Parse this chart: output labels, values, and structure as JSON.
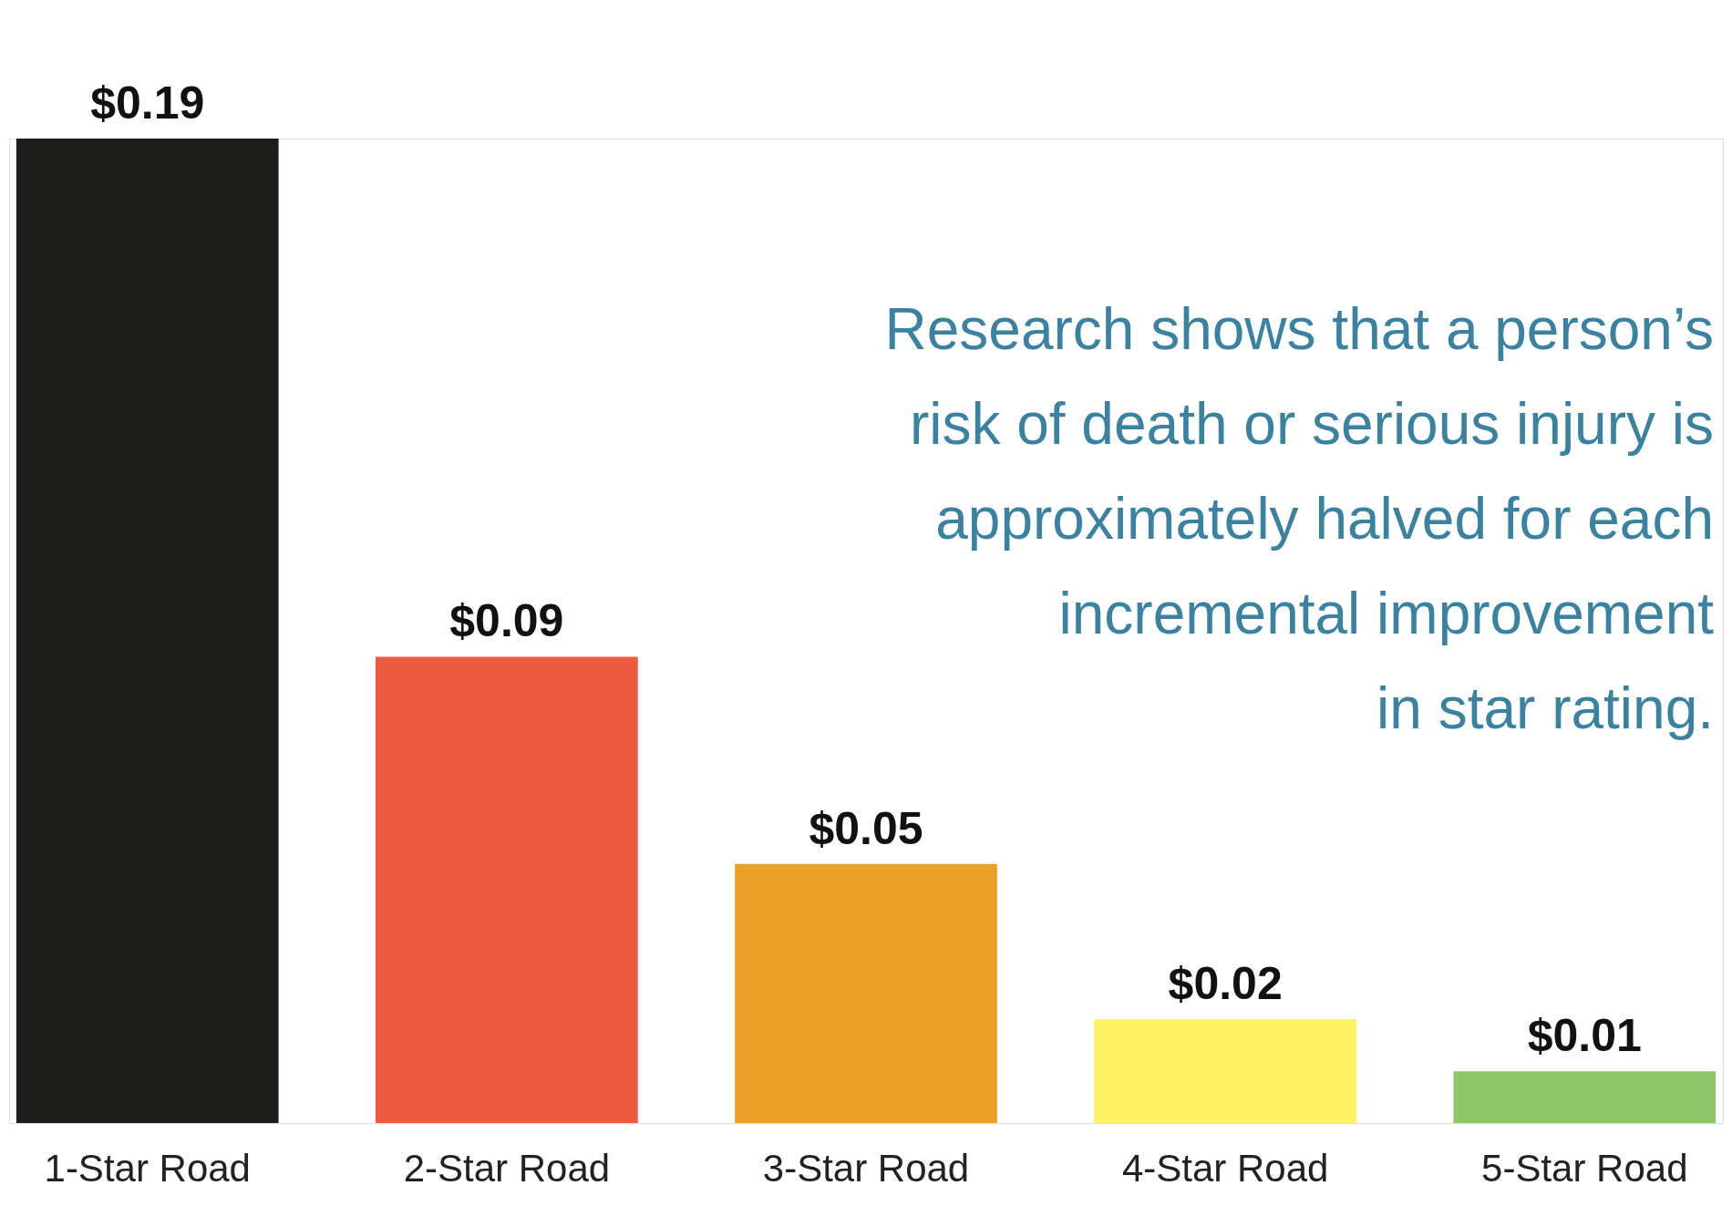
{
  "chart_data": {
    "type": "bar",
    "categories": [
      "1-Star Road",
      "2-Star Road",
      "3-Star Road",
      "4-Star Road",
      "5-Star Road"
    ],
    "values": [
      0.19,
      0.09,
      0.05,
      0.02,
      0.01
    ],
    "value_labels": [
      "$0.19",
      "$0.09",
      "$0.05",
      "$0.02",
      "$0.01"
    ],
    "colors": [
      "#1d1d1b",
      "#ee5a40",
      "#eda027",
      "#fff263",
      "#8cc56a"
    ],
    "annotations": [
      "Research shows that a person’s\nrisk of death or serious injury is\napproximately halved for each\nincremental improvement\nin star rating."
    ],
    "grid": false
  }
}
